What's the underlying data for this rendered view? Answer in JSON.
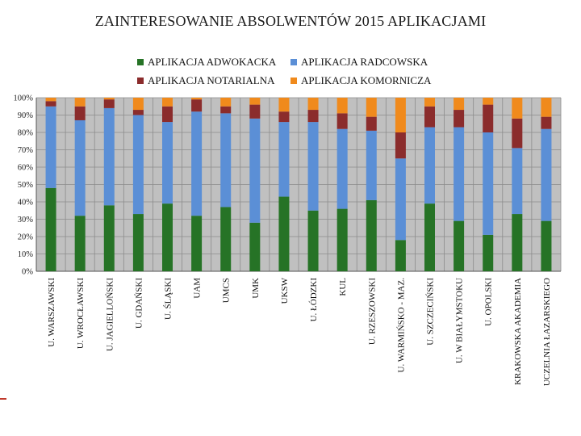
{
  "chart_data": {
    "type": "bar",
    "stacked": true,
    "percent": true,
    "title": "ZAINTERESOWANIE ABSOLWENTÓW 2015 APLIKACJAMI",
    "y_ticks": [
      "0%",
      "10%",
      "20%",
      "30%",
      "40%",
      "50%",
      "60%",
      "70%",
      "80%",
      "90%",
      "100%"
    ],
    "ylim": [
      0,
      100
    ],
    "grid": true,
    "legend_position": "top",
    "categories": [
      "U. WARSZAWSKI",
      "U. WROCŁAWSKI",
      "U. JAGIELLOŃSKI",
      "U. GDAŃSKI",
      "U. ŚLĄSKI",
      "UAM",
      "UMCS",
      "UMK",
      "UKSW",
      "U. ŁÓDZKI",
      "KUL",
      "U. RZESZOWSKI",
      "U. WARMIŃSKO - MAZ.",
      "U. SZCZECIŃSKI",
      "U. W BIAŁYMSTOKU",
      "U. OPOLSKI",
      "KRAKOWSKA AKADEMIA",
      "UCZELNIA ŁAZARSKIEGO"
    ],
    "series": [
      {
        "name": "APLIKACJA ADWOKACKA",
        "color": "#267326",
        "values": [
          48,
          32,
          38,
          33,
          39,
          32,
          37,
          28,
          43,
          35,
          36,
          41,
          18,
          39,
          29,
          21,
          33,
          29
        ]
      },
      {
        "name": "APLIKACJA RADCOWSKA",
        "color": "#5b8fd6",
        "values": [
          47,
          55,
          56,
          57,
          47,
          60,
          54,
          60,
          43,
          51,
          46,
          40,
          47,
          44,
          54,
          59,
          38,
          53
        ]
      },
      {
        "name": "APLIKACJA NOTARIALNA",
        "color": "#8b2c2c",
        "values": [
          3,
          8,
          5,
          3,
          9,
          7,
          4,
          8,
          6,
          7,
          9,
          8,
          15,
          12,
          10,
          16,
          17,
          7
        ]
      },
      {
        "name": "APLIKACJA KOMORNICZA",
        "color": "#f08a1c",
        "values": [
          2,
          5,
          1,
          7,
          5,
          1,
          5,
          4,
          8,
          7,
          9,
          11,
          20,
          5,
          7,
          4,
          12,
          11
        ]
      }
    ]
  }
}
